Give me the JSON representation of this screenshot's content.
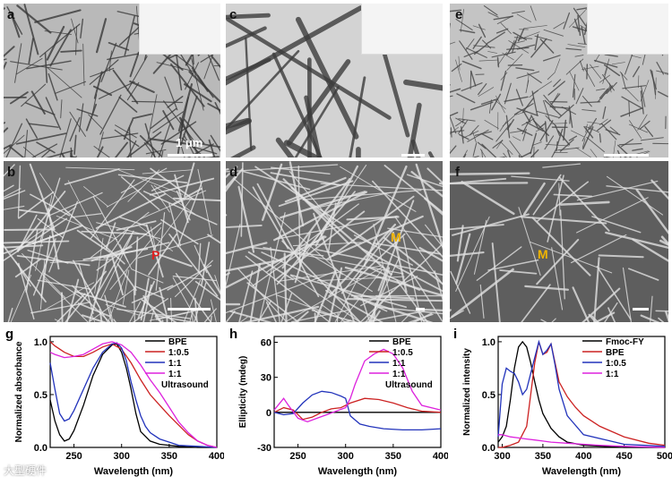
{
  "panels": {
    "a": {
      "label": "a",
      "scale": "1 μm"
    },
    "b": {
      "label": "b",
      "marker": "P"
    },
    "c": {
      "label": "c"
    },
    "d": {
      "label": "d",
      "marker": "M"
    },
    "e": {
      "label": "e"
    },
    "f": {
      "label": "f",
      "marker": "M"
    }
  },
  "colors": {
    "black": "#000000",
    "red": "#cc2222",
    "blue": "#2233bb",
    "magenta": "#dd22dd",
    "marker_red": "#e02020",
    "marker_yellow": "#f0b400"
  },
  "watermark": "大型硬件",
  "chart_data": [
    {
      "panel_label": "g",
      "type": "line",
      "xlabel": "Wavelength (nm)",
      "ylabel": "Normalized absorbance",
      "xlim": [
        225,
        400
      ],
      "ylim": [
        0,
        1.05
      ],
      "xticks": [
        250,
        300,
        350,
        400
      ],
      "yticks": [
        0.0,
        0.5,
        1.0
      ],
      "ytick_labels": [
        "0.0",
        "0.5",
        "1.0"
      ],
      "legend": [
        "BPE",
        "1:0.5",
        "1:1",
        "1:1"
      ],
      "legend_extra": "Ultrasound",
      "series": [
        {
          "name": "BPE",
          "color": "#000000",
          "x": [
            225,
            230,
            235,
            240,
            245,
            250,
            260,
            270,
            280,
            290,
            295,
            300,
            305,
            310,
            315,
            320,
            330,
            340,
            360,
            380,
            400
          ],
          "y": [
            0.45,
            0.25,
            0.12,
            0.06,
            0.08,
            0.16,
            0.4,
            0.68,
            0.88,
            0.97,
            0.98,
            0.9,
            0.75,
            0.55,
            0.32,
            0.15,
            0.06,
            0.03,
            0.01,
            0.0,
            0.0
          ]
        },
        {
          "name": "1:0.5",
          "color": "#cc2222",
          "x": [
            225,
            230,
            240,
            250,
            260,
            270,
            280,
            290,
            300,
            310,
            320,
            330,
            340,
            350,
            360,
            370,
            380,
            390,
            400
          ],
          "y": [
            1.0,
            0.96,
            0.9,
            0.86,
            0.86,
            0.9,
            0.95,
            0.98,
            0.93,
            0.8,
            0.64,
            0.5,
            0.4,
            0.3,
            0.21,
            0.12,
            0.06,
            0.02,
            0.0
          ]
        },
        {
          "name": "1:1",
          "color": "#2233bb",
          "x": [
            225,
            230,
            235,
            240,
            245,
            250,
            260,
            270,
            280,
            290,
            295,
            300,
            305,
            310,
            315,
            320,
            325,
            330,
            340,
            350,
            360,
            380,
            400
          ],
          "y": [
            0.8,
            0.55,
            0.32,
            0.25,
            0.27,
            0.35,
            0.55,
            0.75,
            0.9,
            0.98,
            0.99,
            0.94,
            0.82,
            0.62,
            0.45,
            0.3,
            0.2,
            0.14,
            0.08,
            0.05,
            0.02,
            0.01,
            0.0
          ]
        },
        {
          "name": "1:1",
          "color": "#dd22dd",
          "x": [
            225,
            230,
            240,
            250,
            260,
            270,
            280,
            290,
            300,
            310,
            320,
            330,
            340,
            350,
            360,
            370,
            380,
            390,
            400
          ],
          "y": [
            0.9,
            0.88,
            0.85,
            0.86,
            0.88,
            0.93,
            0.98,
            1.0,
            0.97,
            0.9,
            0.78,
            0.64,
            0.52,
            0.38,
            0.24,
            0.14,
            0.06,
            0.02,
            0.0
          ]
        }
      ]
    },
    {
      "panel_label": "h",
      "type": "line",
      "xlabel": "Wavelength (nm)",
      "ylabel": "Ellipticity (mdeg)",
      "xlim": [
        225,
        400
      ],
      "ylim": [
        -30,
        65
      ],
      "xticks": [
        250,
        300,
        350,
        400
      ],
      "yticks": [
        -30,
        0,
        30,
        60
      ],
      "legend": [
        "BPE",
        "1:0.5",
        "1:1",
        "1:1"
      ],
      "legend_extra": "Ultrasound",
      "series": [
        {
          "name": "BPE",
          "color": "#000000",
          "x": [
            225,
            250,
            300,
            350,
            400
          ],
          "y": [
            0,
            0,
            0,
            0,
            0
          ]
        },
        {
          "name": "1:0.5",
          "color": "#cc2222",
          "x": [
            225,
            235,
            245,
            255,
            265,
            275,
            285,
            295,
            305,
            320,
            335,
            350,
            365,
            380,
            400
          ],
          "y": [
            0,
            4,
            2,
            -6,
            -4,
            0,
            3,
            4,
            8,
            12,
            11,
            8,
            4,
            1,
            0
          ]
        },
        {
          "name": "1:1",
          "color": "#2233bb",
          "x": [
            225,
            235,
            245,
            255,
            265,
            275,
            285,
            295,
            300,
            305,
            315,
            325,
            340,
            360,
            380,
            400
          ],
          "y": [
            0,
            -2,
            -1,
            8,
            15,
            18,
            17,
            14,
            12,
            -3,
            -10,
            -12,
            -14,
            -15,
            -15,
            -14
          ]
        },
        {
          "name": "1:1",
          "color": "#dd22dd",
          "x": [
            225,
            235,
            240,
            250,
            260,
            270,
            280,
            290,
            300,
            305,
            310,
            320,
            330,
            340,
            350,
            360,
            370,
            380,
            400
          ],
          "y": [
            2,
            12,
            6,
            -5,
            -8,
            -5,
            -2,
            1,
            4,
            12,
            24,
            44,
            50,
            54,
            50,
            38,
            18,
            6,
            2
          ]
        }
      ]
    },
    {
      "panel_label": "i",
      "type": "line",
      "xlabel": "Wavelength (nm)",
      "ylabel": "Normalized intensity",
      "xlim": [
        295,
        500
      ],
      "ylim": [
        0,
        1.05
      ],
      "xticks": [
        300,
        350,
        400,
        450,
        500
      ],
      "yticks": [
        0.0,
        0.5,
        1.0
      ],
      "ytick_labels": [
        "0.0",
        "0.5",
        "1.0"
      ],
      "legend": [
        "Fmoc-FY",
        "BPE",
        "1:0.5",
        "1:1"
      ],
      "series": [
        {
          "name": "Fmoc-FY",
          "color": "#000000",
          "x": [
            295,
            300,
            305,
            310,
            315,
            320,
            325,
            330,
            335,
            340,
            345,
            350,
            360,
            370,
            380,
            400,
            450,
            500
          ],
          "y": [
            0.05,
            0.1,
            0.2,
            0.45,
            0.75,
            0.95,
            1.0,
            0.95,
            0.8,
            0.62,
            0.45,
            0.32,
            0.18,
            0.1,
            0.05,
            0.02,
            0.0,
            0.0
          ]
        },
        {
          "name": "BPE",
          "color": "#cc2222",
          "x": [
            295,
            300,
            310,
            320,
            330,
            340,
            345,
            350,
            355,
            360,
            365,
            370,
            380,
            390,
            400,
            420,
            450,
            480,
            500
          ],
          "y": [
            0.0,
            0.0,
            0.02,
            0.05,
            0.2,
            0.8,
            1.0,
            0.88,
            0.9,
            0.98,
            0.8,
            0.62,
            0.48,
            0.38,
            0.3,
            0.2,
            0.1,
            0.04,
            0.02
          ]
        },
        {
          "name": "1:0.5",
          "color": "#2233bb",
          "x": [
            295,
            300,
            305,
            310,
            315,
            320,
            325,
            330,
            335,
            340,
            345,
            350,
            355,
            360,
            365,
            370,
            380,
            400,
            450,
            500
          ],
          "y": [
            0.1,
            0.6,
            0.75,
            0.72,
            0.7,
            0.62,
            0.5,
            0.55,
            0.7,
            0.85,
            1.0,
            0.88,
            0.92,
            0.98,
            0.78,
            0.55,
            0.3,
            0.12,
            0.03,
            0.01
          ]
        },
        {
          "name": "1:1",
          "color": "#dd22dd",
          "x": [
            295,
            300,
            310,
            320,
            330,
            340,
            350,
            360,
            380,
            400,
            420,
            450,
            500
          ],
          "y": [
            0.12,
            0.12,
            0.1,
            0.09,
            0.08,
            0.07,
            0.06,
            0.05,
            0.04,
            0.03,
            0.02,
            0.01,
            0.0
          ]
        }
      ]
    }
  ]
}
